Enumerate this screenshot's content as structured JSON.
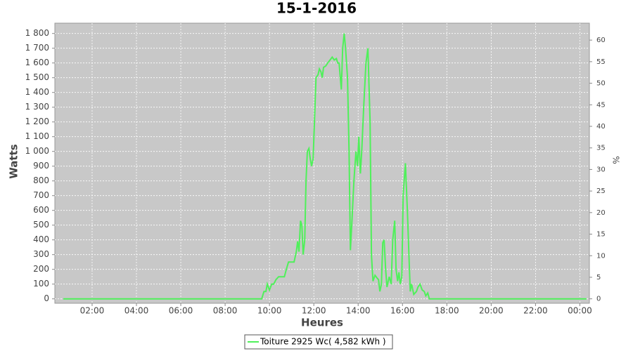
{
  "chart_data": {
    "type": "line",
    "title": "15-1-2016",
    "x_label": "Heures",
    "y_label": "Watts",
    "y2_label": "%",
    "x": [
      0.7,
      9.5,
      9.65,
      9.75,
      9.84,
      9.9,
      10.0,
      10.1,
      10.19,
      10.29,
      10.41,
      10.67,
      10.76,
      10.86,
      11.11,
      11.21,
      11.27,
      11.33,
      11.4,
      11.46,
      11.52,
      11.59,
      11.65,
      11.71,
      11.78,
      11.84,
      11.9,
      11.97,
      12.03,
      12.1,
      12.19,
      12.25,
      12.32,
      12.38,
      12.44,
      12.54,
      12.63,
      12.73,
      12.83,
      12.92,
      13.02,
      13.08,
      13.14,
      13.24,
      13.3,
      13.37,
      13.43,
      13.52,
      13.59,
      13.65,
      13.71,
      13.81,
      13.9,
      13.97,
      14.03,
      14.1,
      14.16,
      14.25,
      14.35,
      14.44,
      14.54,
      14.6,
      14.67,
      14.76,
      14.86,
      14.92,
      14.98,
      15.05,
      15.11,
      15.17,
      15.24,
      15.3,
      15.4,
      15.49,
      15.56,
      15.65,
      15.71,
      15.78,
      15.84,
      15.9,
      15.97,
      16.03,
      16.13,
      16.22,
      16.29,
      16.35,
      16.41,
      16.51,
      16.63,
      16.7,
      16.79,
      16.89,
      16.98,
      17.05,
      17.14,
      17.21,
      17.37,
      24.3
    ],
    "series": [
      {
        "name": "Toiture 2925 Wc( 4,582 kWh )",
        "color": "#4ff05a",
        "values": [
          0,
          0,
          0,
          50,
          50,
          100,
          60,
          100,
          100,
          130,
          150,
          150,
          200,
          250,
          250,
          320,
          390,
          320,
          530,
          500,
          300,
          400,
          800,
          1000,
          1020,
          950,
          900,
          950,
          1200,
          1500,
          1520,
          1560,
          1540,
          1500,
          1570,
          1580,
          1600,
          1620,
          1640,
          1620,
          1630,
          1600,
          1600,
          1420,
          1700,
          1800,
          1700,
          1500,
          1000,
          330,
          500,
          800,
          1000,
          900,
          1100,
          850,
          1000,
          1300,
          1600,
          1700,
          1200,
          300,
          120,
          160,
          140,
          130,
          50,
          100,
          380,
          400,
          200,
          80,
          150,
          100,
          400,
          530,
          200,
          120,
          180,
          100,
          150,
          700,
          920,
          600,
          300,
          50,
          100,
          30,
          50,
          80,
          100,
          60,
          50,
          20,
          40,
          0,
          0,
          0
        ]
      }
    ],
    "xlim": [
      0.32,
      24.43
    ],
    "xticks": [
      {
        "value": 2,
        "label": "02:00"
      },
      {
        "value": 4,
        "label": "04:00"
      },
      {
        "value": 6,
        "label": "06:00"
      },
      {
        "value": 8,
        "label": "08:00"
      },
      {
        "value": 10,
        "label": "10:00"
      },
      {
        "value": 12,
        "label": "12:00"
      },
      {
        "value": 14,
        "label": "14:00"
      },
      {
        "value": 16,
        "label": "16:00"
      },
      {
        "value": 18,
        "label": "18:00"
      },
      {
        "value": 20,
        "label": "20:00"
      },
      {
        "value": 22,
        "label": "22:00"
      },
      {
        "value": 24,
        "label": "00:00"
      }
    ],
    "ylim": [
      -30,
      1870
    ],
    "yticks": [
      0,
      100,
      200,
      300,
      400,
      500,
      600,
      700,
      800,
      900,
      {
        "value": 1000,
        "label": "1 000"
      },
      {
        "value": 1100,
        "label": "1 100"
      },
      {
        "value": 1200,
        "label": "1 200"
      },
      {
        "value": 1300,
        "label": "1 300"
      },
      {
        "value": 1400,
        "label": "1 400"
      },
      {
        "value": 1500,
        "label": "1 500"
      },
      {
        "value": 1600,
        "label": "1 600"
      },
      {
        "value": 1700,
        "label": "1 700"
      },
      {
        "value": 1800,
        "label": "1 800"
      }
    ],
    "y2lim": [
      -1.03,
      63.93
    ],
    "y2ticks": [
      0,
      5,
      10,
      15,
      20,
      25,
      30,
      35,
      40,
      45,
      50,
      55,
      60
    ],
    "grid": true,
    "legend": "bottom"
  }
}
